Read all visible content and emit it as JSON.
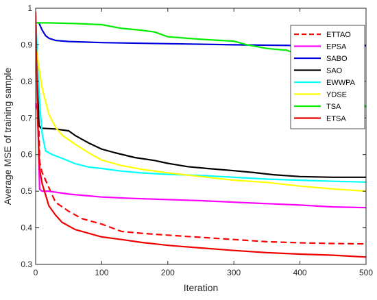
{
  "chart_data": {
    "type": "line",
    "title": "",
    "xlabel": "Iteration",
    "ylabel": "Average MSE of training sample",
    "xlim": [
      0,
      500
    ],
    "ylim": [
      0.3,
      1.0
    ],
    "xticks": [
      "0",
      "100",
      "200",
      "300",
      "400",
      "500"
    ],
    "yticks": [
      "0.3",
      "0.4",
      "0.5",
      "0.6",
      "0.7",
      "0.8",
      "0.9",
      "1"
    ],
    "grid": false,
    "legend_position": "top-right",
    "series": [
      {
        "name": "ETTAO",
        "color": "#ff0000",
        "dash": "dashed",
        "points": [
          [
            0,
            0.98
          ],
          [
            3,
            0.83
          ],
          [
            6,
            0.58
          ],
          [
            10,
            0.55
          ],
          [
            15,
            0.53
          ],
          [
            20,
            0.51
          ],
          [
            30,
            0.47
          ],
          [
            50,
            0.445
          ],
          [
            70,
            0.425
          ],
          [
            100,
            0.41
          ],
          [
            130,
            0.39
          ],
          [
            160,
            0.385
          ],
          [
            200,
            0.38
          ],
          [
            250,
            0.374
          ],
          [
            300,
            0.368
          ],
          [
            350,
            0.362
          ],
          [
            400,
            0.359
          ],
          [
            450,
            0.357
          ],
          [
            500,
            0.356
          ]
        ]
      },
      {
        "name": "EPSA",
        "color": "#ff00ff",
        "dash": "solid",
        "points": [
          [
            0,
            0.74
          ],
          [
            3,
            0.72
          ],
          [
            6,
            0.505
          ],
          [
            10,
            0.5
          ],
          [
            20,
            0.5
          ],
          [
            50,
            0.492
          ],
          [
            100,
            0.484
          ],
          [
            150,
            0.48
          ],
          [
            200,
            0.477
          ],
          [
            250,
            0.474
          ],
          [
            300,
            0.47
          ],
          [
            350,
            0.466
          ],
          [
            400,
            0.462
          ],
          [
            450,
            0.457
          ],
          [
            500,
            0.455
          ]
        ]
      },
      {
        "name": "SABO",
        "color": "#0000dd",
        "dash": "solid",
        "points": [
          [
            0,
            0.96
          ],
          [
            5,
            0.96
          ],
          [
            10,
            0.94
          ],
          [
            15,
            0.925
          ],
          [
            20,
            0.918
          ],
          [
            30,
            0.912
          ],
          [
            50,
            0.909
          ],
          [
            100,
            0.906
          ],
          [
            200,
            0.903
          ],
          [
            300,
            0.9
          ],
          [
            400,
            0.898
          ],
          [
            500,
            0.897
          ]
        ]
      },
      {
        "name": "SAO",
        "color": "#000000",
        "dash": "solid",
        "points": [
          [
            0,
            0.97
          ],
          [
            5,
            0.68
          ],
          [
            8,
            0.672
          ],
          [
            30,
            0.67
          ],
          [
            50,
            0.665
          ],
          [
            60,
            0.652
          ],
          [
            80,
            0.632
          ],
          [
            100,
            0.615
          ],
          [
            120,
            0.605
          ],
          [
            150,
            0.592
          ],
          [
            180,
            0.584
          ],
          [
            200,
            0.576
          ],
          [
            230,
            0.567
          ],
          [
            260,
            0.562
          ],
          [
            300,
            0.556
          ],
          [
            330,
            0.551
          ],
          [
            360,
            0.545
          ],
          [
            400,
            0.54
          ],
          [
            450,
            0.538
          ],
          [
            500,
            0.538
          ]
        ]
      },
      {
        "name": "EWWPA",
        "color": "#00ffff",
        "dash": "solid",
        "points": [
          [
            0,
            0.98
          ],
          [
            3,
            0.85
          ],
          [
            6,
            0.74
          ],
          [
            10,
            0.655
          ],
          [
            15,
            0.61
          ],
          [
            25,
            0.6
          ],
          [
            40,
            0.59
          ],
          [
            60,
            0.575
          ],
          [
            80,
            0.566
          ],
          [
            100,
            0.562
          ],
          [
            130,
            0.555
          ],
          [
            160,
            0.55
          ],
          [
            200,
            0.546
          ],
          [
            250,
            0.543
          ],
          [
            300,
            0.538
          ],
          [
            350,
            0.533
          ],
          [
            400,
            0.53
          ],
          [
            450,
            0.527
          ],
          [
            500,
            0.525
          ]
        ]
      },
      {
        "name": "YDSE",
        "color": "#ffff00",
        "dash": "solid",
        "points": [
          [
            0,
            0.9
          ],
          [
            5,
            0.84
          ],
          [
            10,
            0.78
          ],
          [
            20,
            0.71
          ],
          [
            30,
            0.675
          ],
          [
            40,
            0.653
          ],
          [
            60,
            0.628
          ],
          [
            80,
            0.605
          ],
          [
            100,
            0.585
          ],
          [
            130,
            0.57
          ],
          [
            160,
            0.56
          ],
          [
            200,
            0.55
          ],
          [
            250,
            0.54
          ],
          [
            300,
            0.53
          ],
          [
            350,
            0.524
          ],
          [
            400,
            0.514
          ],
          [
            450,
            0.506
          ],
          [
            500,
            0.5
          ]
        ]
      },
      {
        "name": "TSA",
        "color": "#00ee00",
        "dash": "solid",
        "points": [
          [
            0,
            0.96
          ],
          [
            20,
            0.96
          ],
          [
            60,
            0.958
          ],
          [
            100,
            0.955
          ],
          [
            130,
            0.945
          ],
          [
            160,
            0.94
          ],
          [
            180,
            0.935
          ],
          [
            200,
            0.922
          ],
          [
            250,
            0.915
          ],
          [
            300,
            0.91
          ],
          [
            320,
            0.9
          ],
          [
            350,
            0.89
          ],
          [
            380,
            0.885
          ],
          [
            400,
            0.872
          ],
          [
            430,
            0.85
          ],
          [
            450,
            0.82
          ],
          [
            470,
            0.78
          ],
          [
            490,
            0.75
          ],
          [
            500,
            0.73
          ]
        ]
      },
      {
        "name": "ETSA",
        "color": "#ee0000",
        "dash": "solid",
        "points": [
          [
            0,
            0.99
          ],
          [
            3,
            0.7
          ],
          [
            6,
            0.56
          ],
          [
            10,
            0.52
          ],
          [
            15,
            0.49
          ],
          [
            20,
            0.46
          ],
          [
            30,
            0.435
          ],
          [
            40,
            0.415
          ],
          [
            60,
            0.395
          ],
          [
            80,
            0.385
          ],
          [
            100,
            0.375
          ],
          [
            130,
            0.368
          ],
          [
            160,
            0.36
          ],
          [
            200,
            0.352
          ],
          [
            250,
            0.345
          ],
          [
            300,
            0.338
          ],
          [
            350,
            0.332
          ],
          [
            400,
            0.328
          ],
          [
            450,
            0.325
          ],
          [
            500,
            0.32
          ]
        ]
      }
    ]
  }
}
